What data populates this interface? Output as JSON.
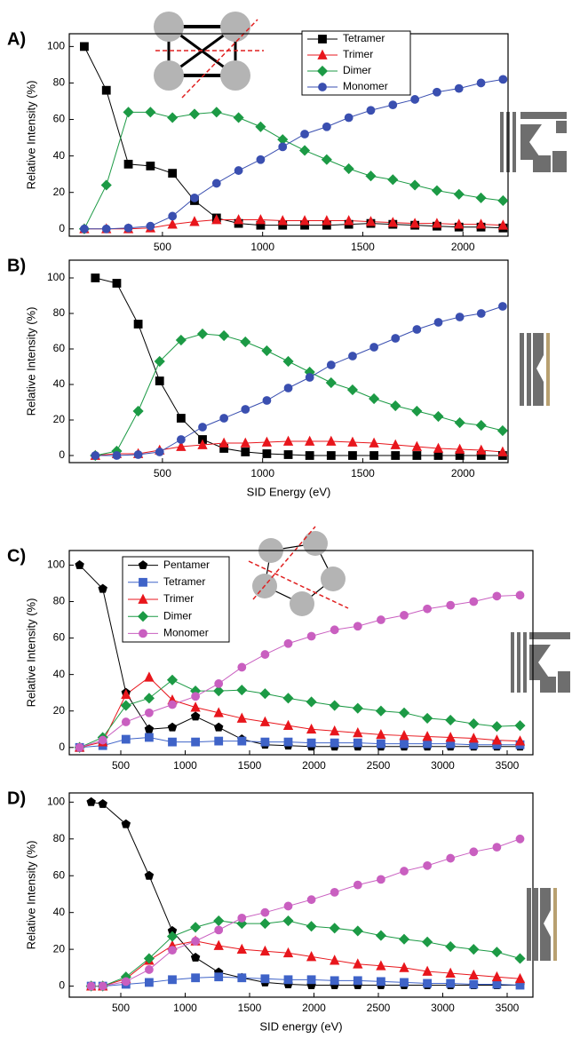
{
  "chart_data": [
    {
      "type": "line",
      "label": "A)",
      "y_label": "Relative Intensity (%)",
      "x": [
        110,
        220,
        330,
        440,
        550,
        660,
        770,
        880,
        990,
        1100,
        1210,
        1320,
        1430,
        1540,
        1650,
        1760,
        1870,
        1980,
        2090,
        2200
      ],
      "xlim": [
        35,
        2225
      ],
      "xticks": [
        500,
        1000,
        1500,
        2000
      ],
      "ylim": [
        -4,
        107
      ],
      "yticks": [
        0,
        20,
        40,
        60,
        80,
        100
      ],
      "legend": true,
      "series": [
        {
          "name": "Tetramer",
          "color": "#000000",
          "marker": "square",
          "values": [
            100,
            76,
            35.5,
            34.5,
            30.5,
            15.5,
            6,
            3,
            2,
            2,
            2,
            2,
            2.5,
            3,
            2.5,
            2,
            1.5,
            1,
            1,
            0.5
          ]
        },
        {
          "name": "Trimer",
          "color": "#e8161c",
          "marker": "triangle",
          "values": [
            0,
            0,
            0,
            0.5,
            2.5,
            4,
            5,
            5,
            5,
            4.5,
            4.5,
            4.5,
            4.5,
            4,
            3.5,
            3,
            3,
            2.5,
            2.5,
            2
          ]
        },
        {
          "name": "Dimer",
          "color": "#1c9a45",
          "marker": "diamond",
          "values": [
            0,
            24,
            64,
            64,
            61,
            63,
            64,
            61,
            56,
            49,
            43,
            38,
            33,
            29,
            27,
            24,
            21,
            19,
            17,
            15.5
          ]
        },
        {
          "name": "Monomer",
          "color": "#3a4fb0",
          "marker": "circle",
          "values": [
            0,
            0,
            0.5,
            1.5,
            7,
            17,
            25,
            32,
            38,
            45,
            52,
            56,
            61,
            65,
            68,
            71,
            75,
            77,
            80,
            82
          ]
        }
      ]
    },
    {
      "type": "line",
      "label": "B)",
      "y_label": "Relative Intensity (%)",
      "x_label": "SID Energy (eV)",
      "x": [
        165,
        272,
        379,
        486,
        593,
        700,
        807,
        914,
        1021,
        1128,
        1235,
        1342,
        1449,
        1556,
        1663,
        1770,
        1877,
        1984,
        2091,
        2198
      ],
      "xlim": [
        35,
        2225
      ],
      "xticks": [
        500,
        1000,
        1500,
        2000
      ],
      "ylim": [
        -4,
        110
      ],
      "yticks": [
        0,
        20,
        40,
        60,
        80,
        100
      ],
      "legend": false,
      "series": [
        {
          "name": "Tetramer",
          "color": "#000000",
          "marker": "square",
          "values": [
            100,
            97,
            74,
            42,
            21,
            9,
            4,
            2,
            1,
            0.5,
            0,
            0,
            0,
            0,
            0,
            0,
            0,
            0,
            0,
            0
          ]
        },
        {
          "name": "Trimer",
          "color": "#e8161c",
          "marker": "triangle",
          "values": [
            0,
            1,
            1,
            3,
            5,
            6,
            7,
            7,
            7.5,
            8,
            8,
            8,
            7.5,
            7,
            6,
            5,
            4,
            3.5,
            3,
            2
          ]
        },
        {
          "name": "Dimer",
          "color": "#1c9a45",
          "marker": "diamond",
          "values": [
            0,
            2.5,
            25,
            53,
            65,
            68.5,
            67.5,
            64,
            59,
            53,
            47,
            41,
            37,
            32,
            28,
            25,
            22,
            18.5,
            17,
            14
          ]
        },
        {
          "name": "Monomer",
          "color": "#3a4fb0",
          "marker": "circle",
          "values": [
            0,
            0,
            0.5,
            2,
            9,
            16,
            21,
            26,
            31,
            38,
            44,
            51,
            56,
            61,
            66,
            71,
            75,
            78,
            80,
            84
          ]
        }
      ]
    },
    {
      "type": "line",
      "label": "C)",
      "y_label": "Relative Intensity (%)",
      "x": [
        180,
        360,
        540,
        720,
        900,
        1080,
        1260,
        1440,
        1620,
        1800,
        1980,
        2160,
        2340,
        2520,
        2700,
        2880,
        3060,
        3240,
        3420,
        3600
      ],
      "xlim": [
        100,
        3700
      ],
      "xticks": [
        500,
        1000,
        1500,
        2000,
        2500,
        3000,
        3500
      ],
      "ylim": [
        -4,
        108
      ],
      "yticks": [
        0,
        20,
        40,
        60,
        80,
        100
      ],
      "legend": true,
      "series": [
        {
          "name": "Pentamer",
          "color": "#000000",
          "marker": "pentagon",
          "values": [
            100,
            87,
            30,
            10,
            11,
            17,
            11,
            4.5,
            1.5,
            1,
            0.5,
            0.5,
            0.5,
            0.5,
            0.5,
            0.5,
            0.5,
            0.5,
            0.5,
            0.5
          ]
        },
        {
          "name": "Tetramer",
          "color": "#3f63c8",
          "marker": "square",
          "values": [
            0,
            1,
            4.5,
            5.5,
            3,
            3,
            3.5,
            3.5,
            3,
            3,
            2.5,
            2.5,
            2.5,
            2,
            2,
            2,
            2,
            1.5,
            1.5,
            1.5
          ]
        },
        {
          "name": "Trimer",
          "color": "#e8161c",
          "marker": "triangle",
          "values": [
            0,
            3,
            29,
            38.5,
            26,
            22,
            19,
            16,
            14,
            12,
            10,
            9,
            8,
            7,
            6.5,
            6,
            5.5,
            5,
            4,
            3.5
          ]
        },
        {
          "name": "Dimer",
          "color": "#1c9a45",
          "marker": "diamond",
          "values": [
            0,
            5.5,
            23,
            27,
            37,
            31,
            31,
            31.5,
            29.5,
            27,
            25,
            23,
            21.5,
            20,
            19,
            16,
            15,
            13,
            11.5,
            12
          ]
        },
        {
          "name": "Monomer",
          "color": "#c95fc0",
          "marker": "circle",
          "values": [
            0,
            4,
            14,
            19,
            23.5,
            28,
            35,
            44,
            51,
            57,
            61,
            64.5,
            66.5,
            70,
            72.5,
            76,
            78,
            80,
            83,
            83.5
          ]
        }
      ]
    },
    {
      "type": "line",
      "label": "D)",
      "y_label": "Relative Intensity (%)",
      "x_label": "SID energy (eV)",
      "x": [
        270,
        360,
        540,
        720,
        900,
        1080,
        1260,
        1440,
        1620,
        1800,
        1980,
        2160,
        2340,
        2520,
        2700,
        2880,
        3060,
        3240,
        3420,
        3600
      ],
      "xlim": [
        100,
        3700
      ],
      "xticks": [
        500,
        1000,
        1500,
        2000,
        2500,
        3000,
        3500
      ],
      "ylim": [
        -6,
        105
      ],
      "yticks": [
        0,
        20,
        40,
        60,
        80,
        100
      ],
      "legend": false,
      "series": [
        {
          "name": "Pentamer",
          "color": "#000000",
          "marker": "pentagon",
          "values": [
            100,
            99,
            88,
            60,
            30,
            15.5,
            7.5,
            4.5,
            2,
            1,
            0.5,
            0.5,
            0.5,
            0.5,
            0.5,
            0.5,
            0.5,
            0.5,
            0.5,
            0.5
          ]
        },
        {
          "name": "Tetramer",
          "color": "#3f63c8",
          "marker": "square",
          "values": [
            0,
            0,
            1,
            2,
            3.5,
            4.5,
            5,
            4.5,
            4,
            3.5,
            3.5,
            3,
            3,
            2.5,
            2,
            1.5,
            1.5,
            1,
            1,
            0.5
          ]
        },
        {
          "name": "Trimer",
          "color": "#e8161c",
          "marker": "triangle",
          "values": [
            0,
            0,
            4,
            14,
            22,
            24.5,
            22,
            20,
            19,
            18,
            16,
            14,
            12,
            11,
            10,
            8,
            7,
            6,
            5,
            4
          ]
        },
        {
          "name": "Dimer",
          "color": "#1c9a45",
          "marker": "diamond",
          "values": [
            0,
            0,
            5,
            15,
            27,
            32,
            35.5,
            34,
            34,
            35.5,
            32.5,
            31.5,
            30,
            27.5,
            25.5,
            24,
            21.5,
            20,
            18.5,
            15
          ]
        },
        {
          "name": "Monomer",
          "color": "#c95fc0",
          "marker": "circle",
          "values": [
            0,
            0,
            2.5,
            9,
            19.5,
            24.5,
            30.5,
            37,
            40,
            43.5,
            47,
            51,
            55,
            58,
            62.5,
            65.5,
            69.5,
            73,
            75.5,
            80
          ]
        }
      ]
    }
  ]
}
